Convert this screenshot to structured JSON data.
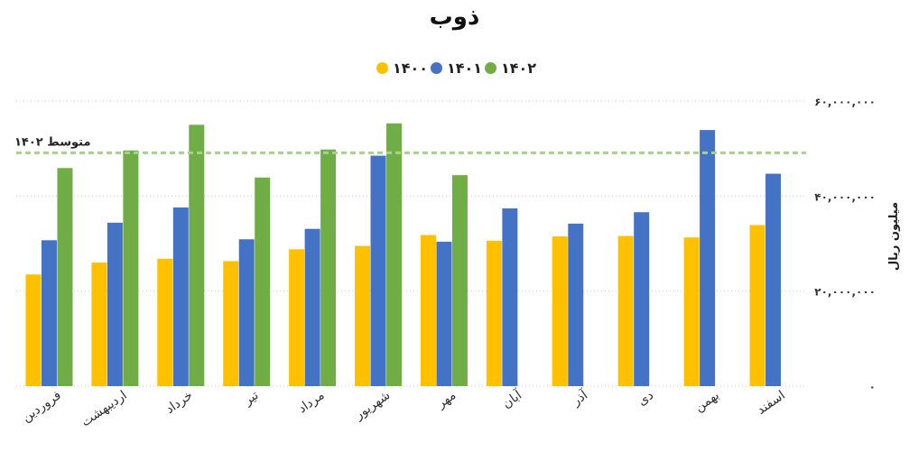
{
  "title": "ذوب",
  "colors": {
    "1400": "#FFC000",
    "1401": "#4472C4",
    "1402": "#70AD47",
    "avg_line": "#A9D18E",
    "grid": "#D0D0D0"
  },
  "chart_data": {
    "type": "bar",
    "title": "ذوب",
    "categories": [
      "فروردین",
      "اردیبهشت",
      "خرداد",
      "تیر",
      "مرداد",
      "شهریور",
      "مهر",
      "آبان",
      "آذر",
      "دی",
      "بهمن",
      "اسفند"
    ],
    "series": [
      {
        "name": "۱۴۰۰",
        "color": "#FFC000",
        "values": [
          23500000,
          26000000,
          26800000,
          26300000,
          28800000,
          29500000,
          31800000,
          30600000,
          31500000,
          31600000,
          31300000,
          33900000
        ]
      },
      {
        "name": "۱۴۰۱",
        "color": "#4472C4",
        "values": [
          30700000,
          34400000,
          37600000,
          30900000,
          33100000,
          48500000,
          30400000,
          37400000,
          34200000,
          36600000,
          53900000,
          44700000
        ]
      },
      {
        "name": "۱۴۰۲",
        "color": "#70AD47",
        "values": [
          45900000,
          49600000,
          55000000,
          43900000,
          49800000,
          55300000,
          44400000,
          null,
          null,
          null,
          null,
          null
        ]
      }
    ],
    "reference_line": {
      "label": "متوسط ۱۴۰۲",
      "value": 49100000
    },
    "ylabel": "میلیون ریال",
    "yticks": [
      0,
      20000000,
      40000000,
      60000000
    ],
    "ytick_labels": [
      "۰",
      "۲۰,۰۰۰,۰۰۰",
      "۴۰,۰۰۰,۰۰۰",
      "۶۰,۰۰۰,۰۰۰"
    ],
    "ylim": [
      0,
      60000000
    ],
    "grid": true,
    "legend_position": "top-center"
  }
}
